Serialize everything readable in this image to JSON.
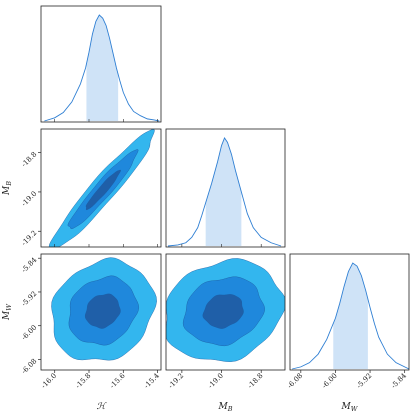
{
  "chart_data": {
    "type": "corner",
    "title": "",
    "colors": {
      "histogram_line": "#2f7fd3",
      "histogram_fill": "#cfe3f7",
      "contour_1sigma": "#1f5fa8",
      "contour_2sigma": "#1f88dc",
      "contour_3sigma": "#33b6ee"
    },
    "parameters": [
      {
        "label": "ℋ",
        "axis_range": [
          -16.08,
          -15.38
        ],
        "ticks": [
          "-16.0",
          "-15.8",
          "-15.6",
          "-15.4"
        ],
        "tick_values": [
          -16.0,
          -15.8,
          -15.6,
          -15.4
        ],
        "mode": -15.73,
        "interval": [
          -15.815,
          -15.63
        ]
      },
      {
        "label": "M_B",
        "axis_range": [
          -19.28,
          -18.68
        ],
        "ticks": [
          "-19.2",
          "-19.0",
          "-18.8"
        ],
        "tick_values": [
          -19.2,
          -19.0,
          -18.8
        ],
        "mode": -18.985,
        "interval": [
          -19.08,
          -18.9
        ]
      },
      {
        "label": "M_W",
        "axis_range": [
          -6.105,
          -5.83
        ],
        "ticks": [
          "-6.08",
          "-6.00",
          "-5.92",
          "-5.84"
        ],
        "tick_values": [
          -6.08,
          -6.0,
          -5.92,
          -5.84
        ],
        "mode": -5.965,
        "interval": [
          -6.005,
          -5.925
        ]
      }
    ],
    "marginals": [
      {
        "parameter": "ℋ",
        "x": [
          -16.06,
          -16.0,
          -15.95,
          -15.9,
          -15.85,
          -15.82,
          -15.8,
          -15.78,
          -15.76,
          -15.74,
          -15.72,
          -15.7,
          -15.68,
          -15.66,
          -15.64,
          -15.62,
          -15.6,
          -15.57,
          -15.54,
          -15.5,
          -15.46,
          -15.42,
          -15.39
        ],
        "density": [
          0.0,
          0.03,
          0.08,
          0.18,
          0.35,
          0.5,
          0.65,
          0.82,
          0.94,
          1.0,
          0.97,
          0.9,
          0.78,
          0.64,
          0.5,
          0.38,
          0.27,
          0.16,
          0.09,
          0.05,
          0.02,
          0.01,
          0.0
        ]
      },
      {
        "parameter": "M_B",
        "x": [
          -19.27,
          -19.22,
          -19.18,
          -19.15,
          -19.12,
          -19.1,
          -19.08,
          -19.05,
          -19.02,
          -19.0,
          -18.985,
          -18.97,
          -18.95,
          -18.93,
          -18.9,
          -18.87,
          -18.84,
          -18.8,
          -18.75,
          -18.7
        ],
        "density": [
          0.0,
          0.01,
          0.03,
          0.08,
          0.17,
          0.28,
          0.4,
          0.58,
          0.78,
          0.93,
          1.0,
          0.96,
          0.85,
          0.7,
          0.5,
          0.3,
          0.17,
          0.08,
          0.03,
          0.0
        ]
      },
      {
        "parameter": "M_W",
        "x": [
          -6.1,
          -6.08,
          -6.06,
          -6.04,
          -6.02,
          -6.0,
          -5.99,
          -5.98,
          -5.97,
          -5.96,
          -5.95,
          -5.94,
          -5.93,
          -5.92,
          -5.91,
          -5.9,
          -5.88,
          -5.86,
          -5.84,
          -5.83
        ],
        "density": [
          0.0,
          0.02,
          0.06,
          0.14,
          0.28,
          0.48,
          0.62,
          0.78,
          0.92,
          1.0,
          0.97,
          0.88,
          0.74,
          0.58,
          0.43,
          0.3,
          0.14,
          0.06,
          0.02,
          0.0
        ]
      }
    ],
    "joint": [
      {
        "x": "ℋ",
        "y": "M_B",
        "center": [
          -15.72,
          -18.99
        ],
        "sigma": [
          0.1,
          0.1
        ],
        "rho": 0.95
      },
      {
        "x": "ℋ",
        "y": "M_W",
        "center": [
          -15.72,
          -5.965
        ],
        "sigma": [
          0.1,
          0.04
        ],
        "rho": 0.15
      },
      {
        "x": "M_B",
        "y": "M_W",
        "center": [
          -18.99,
          -5.965
        ],
        "sigma": [
          0.1,
          0.04
        ],
        "rho": 0.15
      }
    ],
    "contour_levels_sigma": [
      1,
      2,
      3
    ]
  }
}
